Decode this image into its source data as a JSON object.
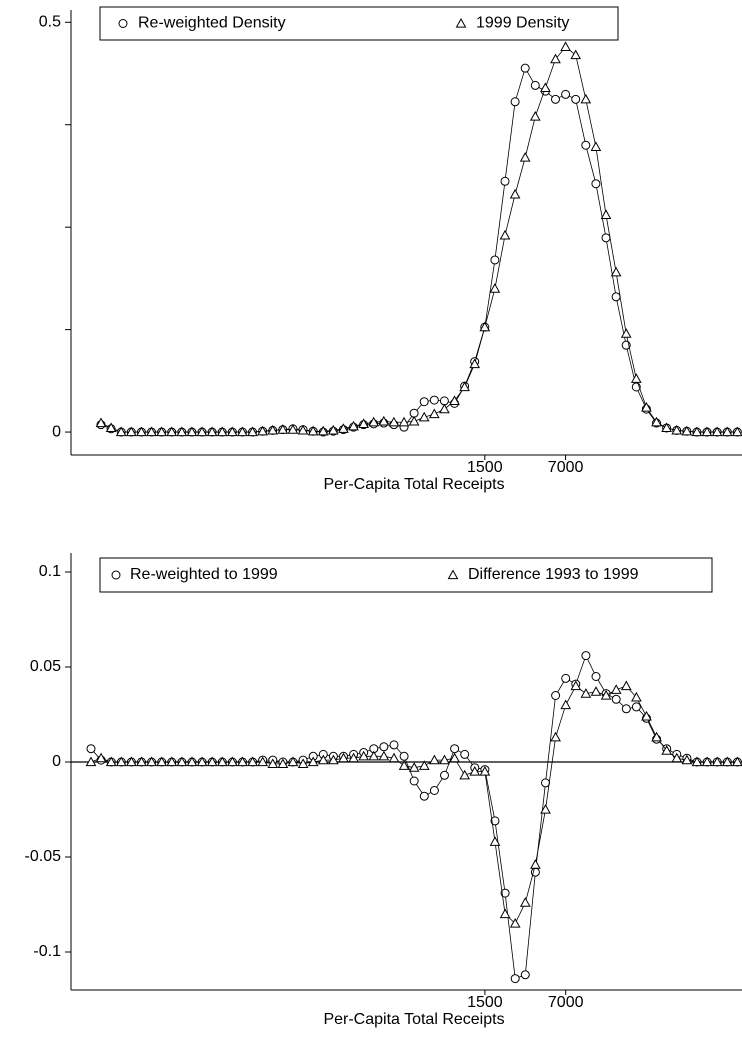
{
  "chart_data": [
    {
      "type": "line",
      "xlabel": "Per-Capita Total Receipts",
      "categories": [
        null,
        null,
        null,
        null,
        null,
        null,
        null,
        null,
        null,
        null,
        null,
        null,
        null,
        null,
        null,
        null,
        null,
        null,
        null,
        null,
        null,
        null,
        null,
        null,
        null,
        null,
        null,
        null,
        null,
        null,
        null,
        null,
        null,
        null,
        null,
        null,
        null,
        null,
        "1500",
        null,
        null,
        null,
        null,
        null,
        null,
        null,
        "7000",
        null,
        null,
        null,
        null,
        null,
        null,
        null,
        null,
        null,
        null,
        null,
        null,
        null,
        null,
        null,
        null,
        null
      ],
      "ylim": [
        -0.028,
        0.515
      ],
      "yticks": [
        0,
        0.5
      ],
      "yticks_minor": [
        0.125,
        0.25,
        0.375
      ],
      "legend": "top",
      "zero_line": false,
      "series": [
        {
          "name": "Re-weighted Density",
          "color": "#000000",
          "marker": "circle",
          "values": [
            0.009,
            0.004,
            0,
            0,
            0,
            0,
            0,
            0,
            0,
            0,
            0,
            0,
            0,
            0,
            0,
            0,
            0.001,
            0.002,
            0.003,
            0.004,
            0.003,
            0.001,
            0,
            0.001,
            0.003,
            0.006,
            0.009,
            0.01,
            0.011,
            0.009,
            0.006,
            0.023,
            0.037,
            0.039,
            0.038,
            0.035,
            0.056,
            0.086,
            0.128,
            0.21,
            0.306,
            0.403,
            0.444,
            0.423,
            0.416,
            0.406,
            0.412,
            0.406,
            0.35,
            0.303,
            0.237,
            0.165,
            0.106,
            0.055,
            0.028,
            0.011,
            0.005,
            0.002,
            0.001,
            0,
            0,
            0,
            0,
            0
          ]
        },
        {
          "name": "1999 Density",
          "color": "#000000",
          "marker": "triangle",
          "values": [
            0.011,
            0.005,
            0,
            0,
            0,
            0,
            0,
            0,
            0,
            0,
            0,
            0,
            0,
            0,
            0,
            0,
            0.001,
            0.002,
            0.003,
            0.003,
            0.002,
            0.001,
            0.001,
            0.002,
            0.004,
            0.007,
            0.01,
            0.012,
            0.013,
            0.012,
            0.012,
            0.013,
            0.018,
            0.022,
            0.028,
            0.038,
            0.055,
            0.083,
            0.128,
            0.175,
            0.24,
            0.29,
            0.335,
            0.385,
            0.42,
            0.455,
            0.47,
            0.46,
            0.406,
            0.348,
            0.265,
            0.195,
            0.12,
            0.065,
            0.03,
            0.012,
            0.005,
            0.002,
            0.001,
            0,
            0,
            0,
            0,
            0
          ]
        }
      ]
    },
    {
      "type": "line",
      "xlabel": "Per-Capita Total Receipts",
      "categories": [
        null,
        null,
        null,
        null,
        null,
        null,
        null,
        null,
        null,
        null,
        null,
        null,
        null,
        null,
        null,
        null,
        null,
        null,
        null,
        null,
        null,
        null,
        null,
        null,
        null,
        null,
        null,
        null,
        null,
        null,
        null,
        null,
        null,
        null,
        null,
        null,
        null,
        null,
        null,
        "1500",
        null,
        null,
        null,
        null,
        null,
        null,
        null,
        "7000",
        null,
        null,
        null,
        null,
        null,
        null,
        null,
        null,
        null,
        null,
        null,
        null,
        null,
        null,
        null,
        null,
        null
      ],
      "ylim": [
        -0.12,
        0.11
      ],
      "yticks": [
        -0.1,
        -0.05,
        0,
        0.05,
        0.1
      ],
      "legend": "top",
      "zero_line": true,
      "series": [
        {
          "name": "Re-weighted to 1999",
          "color": "#000000",
          "marker": "circle",
          "values": [
            0.007,
            0.001,
            0,
            0,
            0,
            0,
            0,
            0,
            0,
            0,
            0,
            0,
            0,
            0,
            0,
            0,
            0,
            0.001,
            0.001,
            0,
            0,
            0.001,
            0.003,
            0.004,
            0.003,
            0.003,
            0.004,
            0.005,
            0.007,
            0.008,
            0.009,
            0.003,
            -0.01,
            -0.018,
            -0.015,
            -0.007,
            0.007,
            0.004,
            -0.003,
            -0.004,
            -0.031,
            -0.069,
            -0.114,
            -0.112,
            -0.058,
            -0.011,
            0.035,
            0.044,
            0.041,
            0.056,
            0.045,
            0.036,
            0.033,
            0.028,
            0.029,
            0.023,
            0.012,
            0.007,
            0.004,
            0.002,
            0,
            0,
            0,
            0,
            0
          ]
        },
        {
          "name": "Difference 1993 to 1999",
          "color": "#000000",
          "marker": "triangle",
          "values": [
            0,
            0.002,
            0,
            0,
            0,
            0,
            0,
            0,
            0,
            0,
            0,
            0,
            0,
            0,
            0,
            0,
            0,
            0,
            -0.001,
            -0.001,
            0,
            -0.001,
            0,
            0.001,
            0.001,
            0.002,
            0.002,
            0.003,
            0.003,
            0.003,
            0.002,
            -0.002,
            -0.003,
            -0.002,
            0.001,
            0.001,
            0.002,
            -0.007,
            -0.005,
            -0.005,
            -0.042,
            -0.08,
            -0.085,
            -0.074,
            -0.054,
            -0.025,
            0.013,
            0.03,
            0.04,
            0.036,
            0.037,
            0.035,
            0.038,
            0.04,
            0.034,
            0.024,
            0.013,
            0.006,
            0.002,
            0.001,
            0,
            0,
            0,
            0,
            0
          ]
        }
      ]
    }
  ]
}
